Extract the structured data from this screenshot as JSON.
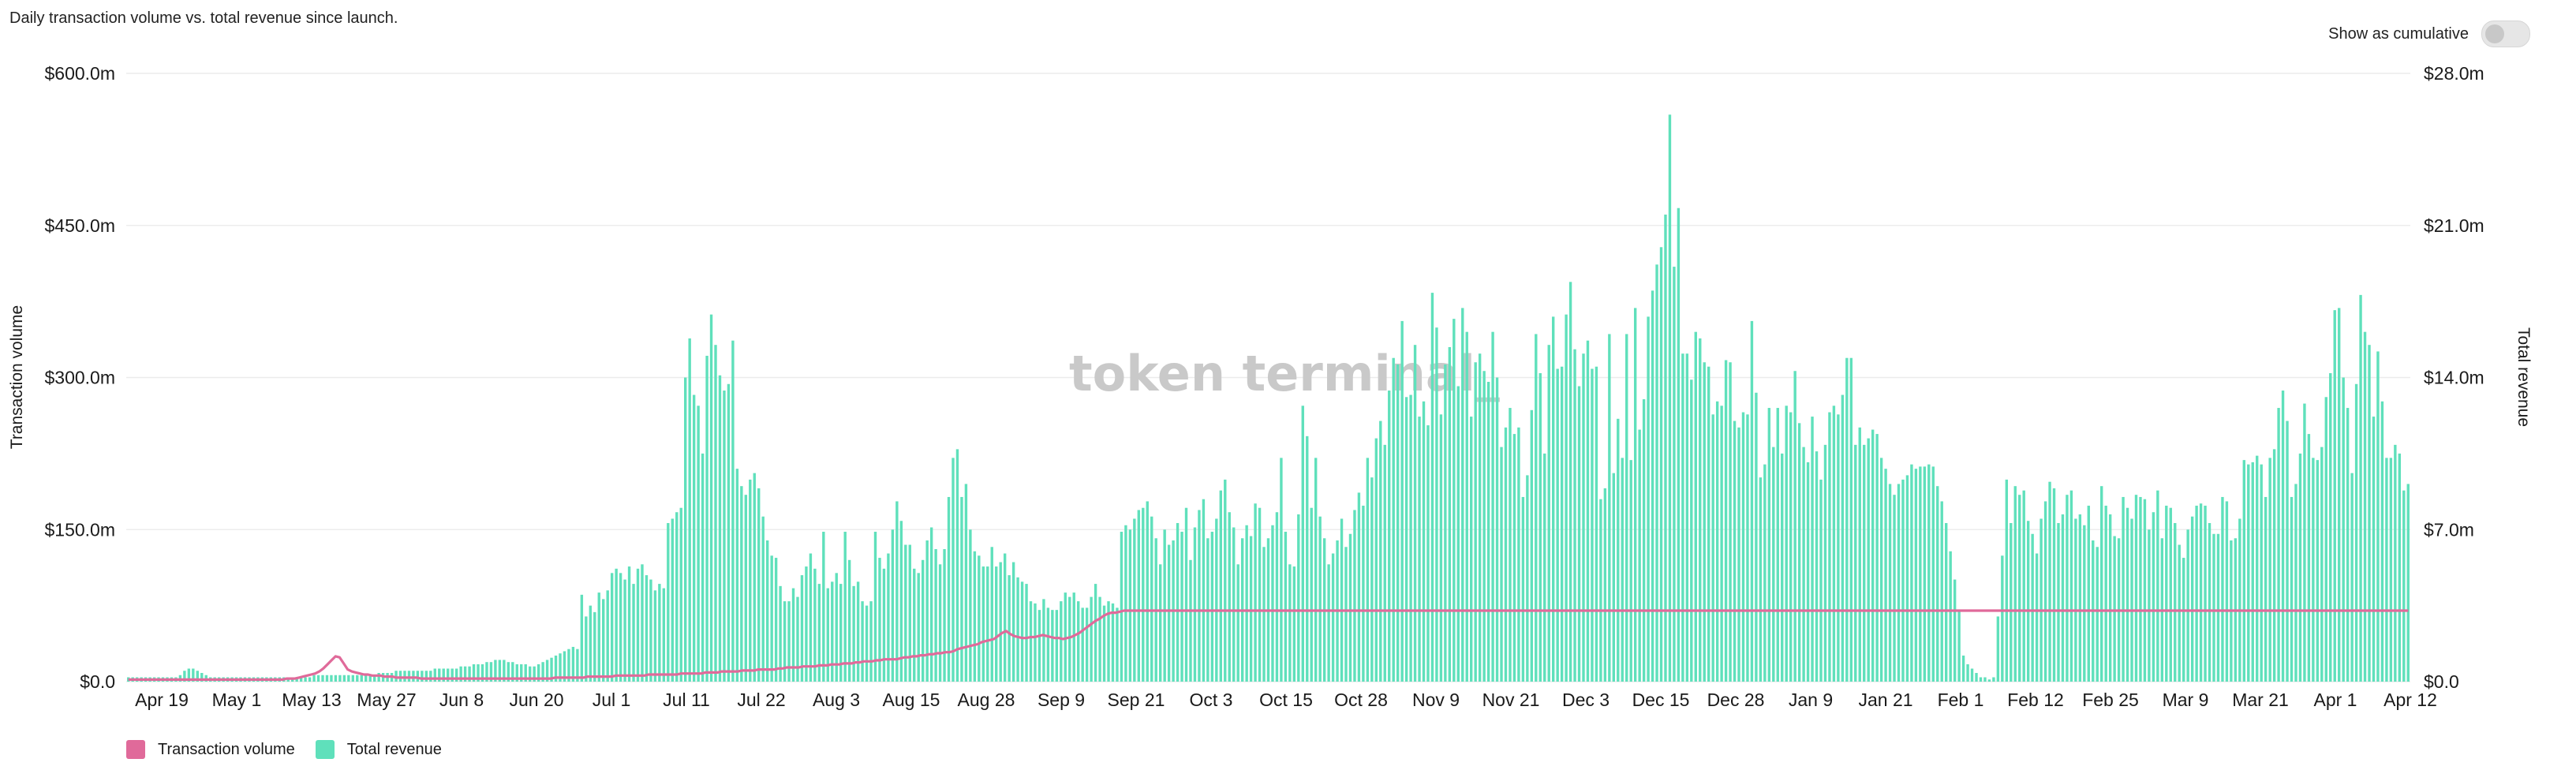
{
  "header": {
    "subtitle": "Daily transaction volume vs. total revenue since launch.",
    "toggle_label": "Show as cumulative"
  },
  "chart_data": {
    "type": "bar+line",
    "watermark": "token terminal_",
    "y_left": {
      "label": "Transaction volume",
      "range": [
        0,
        600
      ],
      "unit": "$m",
      "ticks": [
        "$0.0",
        "$150.0m",
        "$300.0m",
        "$450.0m",
        "$600.0m"
      ]
    },
    "y_right": {
      "label": "Total revenue",
      "range": [
        0,
        28
      ],
      "unit": "$m",
      "ticks": [
        "$0.0",
        "$7.0m",
        "$14.0m",
        "$21.0m",
        "$28.0m"
      ]
    },
    "x_ticks": [
      "Apr 19",
      "May 1",
      "May 13",
      "May 27",
      "Jun 8",
      "Jun 20",
      "Jul 1",
      "Jul 11",
      "Jul 22",
      "Aug 3",
      "Aug 15",
      "Aug 28",
      "Sep 9",
      "Sep 21",
      "Oct 3",
      "Oct 15",
      "Oct 28",
      "Nov 9",
      "Nov 21",
      "Dec 3",
      "Dec 15",
      "Dec 28",
      "Jan 9",
      "Jan 21",
      "Feb 1",
      "Feb 12",
      "Feb 25",
      "Mar 9",
      "Mar 21",
      "Apr 1",
      "Apr 12"
    ],
    "grid": true,
    "legend_position": "bottom-left",
    "colors": {
      "transaction_volume": "#e06a9a",
      "total_revenue": "#5fe0bb"
    },
    "series": [
      {
        "name": "Total revenue",
        "type": "bar",
        "axis": "right",
        "values": [
          0.2,
          0.2,
          0.2,
          0.2,
          0.2,
          0.2,
          0.2,
          0.2,
          0.2,
          0.2,
          0.2,
          0.2,
          0.3,
          0.5,
          0.6,
          0.6,
          0.5,
          0.4,
          0.3,
          0.2,
          0.2,
          0.2,
          0.2,
          0.2,
          0.2,
          0.2,
          0.2,
          0.2,
          0.2,
          0.2,
          0.2,
          0.2,
          0.2,
          0.2,
          0.2,
          0.2,
          0.2,
          0.2,
          0.2,
          0.2,
          0.2,
          0.2,
          0.2,
          0.3,
          0.3,
          0.3,
          0.3,
          0.3,
          0.3,
          0.3,
          0.3,
          0.3,
          0.3,
          0.3,
          0.3,
          0.3,
          0.3,
          0.3,
          0.4,
          0.4,
          0.4,
          0.4,
          0.5,
          0.5,
          0.5,
          0.5,
          0.5,
          0.5,
          0.5,
          0.5,
          0.5,
          0.6,
          0.6,
          0.6,
          0.6,
          0.6,
          0.6,
          0.7,
          0.7,
          0.7,
          0.8,
          0.8,
          0.8,
          0.9,
          0.9,
          1.0,
          1.0,
          1.0,
          0.9,
          0.9,
          0.8,
          0.8,
          0.8,
          0.7,
          0.7,
          0.8,
          0.9,
          1.0,
          1.1,
          1.2,
          1.3,
          1.4,
          1.5,
          1.6,
          1.5,
          4.0,
          3.0,
          3.5,
          3.2,
          4.1,
          3.8,
          4.2,
          5.0,
          5.2,
          5.0,
          4.7,
          5.3,
          4.5,
          5.2,
          5.4,
          4.9,
          4.7,
          4.2,
          4.5,
          4.3,
          7.3,
          7.5,
          7.8,
          8.0,
          14.0,
          15.8,
          13.2,
          12.7,
          10.5,
          15.0,
          16.9,
          15.5,
          14.1,
          13.4,
          13.7,
          15.7,
          9.8,
          9.0,
          8.6,
          9.3,
          9.6,
          8.9,
          7.6,
          6.5,
          5.8,
          5.7,
          4.4,
          3.7,
          3.7,
          4.3,
          3.9,
          4.9,
          5.3,
          5.9,
          5.2,
          4.5,
          6.9,
          4.3,
          4.6,
          5.0,
          4.5,
          6.9,
          5.6,
          4.4,
          4.6,
          3.7,
          3.5,
          3.7,
          6.9,
          5.7,
          5.2,
          5.9,
          7.0,
          8.3,
          7.4,
          6.3,
          6.3,
          5.2,
          5.0,
          5.6,
          6.5,
          7.1,
          6.1,
          5.4,
          6.1,
          8.5,
          10.3,
          10.7,
          8.5,
          9.1,
          7.0,
          6.0,
          5.8,
          5.3,
          5.3,
          6.2,
          5.3,
          5.5,
          5.9,
          4.9,
          5.5,
          4.8,
          4.6,
          4.5,
          3.7,
          3.6,
          3.3,
          3.8,
          3.4,
          3.3,
          3.3,
          3.7,
          4.1,
          3.9,
          4.1,
          3.7,
          3.4,
          3.4,
          3.9,
          4.5,
          3.9,
          3.5,
          3.7,
          3.6,
          3.4,
          6.9,
          7.2,
          7.0,
          7.5,
          7.9,
          8.0,
          8.3,
          7.6,
          6.6,
          5.4,
          7.0,
          6.3,
          6.5,
          7.3,
          6.9,
          8.0,
          5.6,
          7.1,
          7.9,
          8.4,
          6.6,
          6.9,
          7.5,
          8.8,
          9.3,
          7.8,
          7.1,
          5.4,
          6.6,
          7.2,
          6.7,
          8.2,
          8.0,
          6.2,
          6.6,
          7.2,
          7.8,
          10.3,
          6.9,
          5.4,
          5.3,
          7.7,
          12.7,
          11.3,
          8.0,
          10.3,
          7.6,
          6.6,
          5.4,
          5.9,
          6.5,
          7.5,
          6.2,
          6.8,
          7.9,
          8.7,
          8.1,
          10.3,
          9.4,
          11.2,
          12.0,
          10.9,
          13.4,
          14.9,
          14.6,
          16.6,
          13.1,
          13.2,
          15.5,
          12.2,
          12.9,
          11.8,
          17.9,
          16.3,
          12.3,
          14.6,
          15.4,
          16.7,
          13.6,
          17.2,
          16.1,
          12.2,
          14.7,
          15.1,
          14.3,
          13.8,
          16.1,
          14.0,
          10.8,
          11.7,
          12.6,
          11.4,
          11.7,
          8.5,
          9.5,
          12.5,
          16.0,
          14.2,
          10.5,
          15.5,
          16.8,
          14.4,
          14.5,
          16.9,
          18.4,
          15.3,
          13.6,
          15.1,
          15.7,
          14.4,
          14.5,
          8.4,
          8.9,
          16.0,
          9.6,
          12.1,
          10.3,
          16.0,
          10.2,
          17.2,
          11.6,
          13.0,
          16.8,
          18.0,
          19.2,
          20.0,
          21.5,
          26.1,
          19.1,
          21.8,
          15.1,
          15.1,
          13.9,
          16.1,
          15.8,
          14.7,
          14.5,
          12.3,
          12.9,
          12.7,
          14.8,
          14.7,
          12.0,
          11.7,
          12.4,
          12.3,
          16.6,
          13.3,
          9.4,
          10.0,
          12.6,
          10.8,
          12.6,
          10.5,
          12.7,
          12.4,
          14.3,
          11.9,
          10.8,
          10.1,
          12.2,
          10.6,
          9.3,
          10.9,
          12.4,
          12.7,
          12.3,
          13.2,
          14.9,
          14.9,
          10.9,
          11.7,
          10.9,
          11.2,
          11.6,
          11.4,
          10.3,
          9.8,
          9.1,
          8.6,
          9.1,
          9.3,
          9.5,
          10.0,
          9.8,
          9.9,
          9.9,
          10.0,
          9.9,
          9.0,
          8.3,
          7.3,
          6.0,
          4.7,
          3.3,
          1.2,
          0.8,
          0.6,
          0.4,
          0.2,
          0.2,
          0.1,
          0.2,
          3.0,
          5.8,
          9.3,
          7.3,
          9.0,
          8.6,
          8.8,
          7.4,
          6.8,
          5.9,
          7.5,
          8.3,
          9.2,
          8.9,
          7.3,
          7.7,
          8.6,
          8.8,
          7.5,
          7.7,
          7.2,
          8.1,
          6.5,
          6.2,
          9.0,
          8.1,
          7.7,
          6.7,
          6.6,
          8.5,
          8.0,
          7.5,
          8.6,
          8.5,
          8.4,
          7.0,
          7.8,
          8.8,
          6.6,
          8.1,
          8.0,
          7.3,
          6.3,
          5.7,
          7.0,
          7.6,
          8.1,
          8.2,
          8.1,
          7.3,
          6.8,
          6.8,
          8.5,
          8.3,
          6.5,
          6.6,
          7.5,
          10.2,
          10.0,
          10.1,
          10.4,
          10.0,
          8.5,
          10.3,
          10.7,
          12.6,
          13.4,
          12.0,
          8.5,
          9.1,
          10.5,
          12.8,
          11.4,
          10.3,
          10.2,
          10.8,
          13.1,
          14.2,
          17.1,
          17.2,
          14.0,
          12.6,
          9.6,
          13.7,
          17.8,
          16.1,
          15.5,
          12.2,
          15.2,
          12.9,
          10.3,
          10.3,
          10.9,
          10.5,
          8.8,
          9.1
        ]
      },
      {
        "name": "Transaction volume",
        "type": "line",
        "axis": "left",
        "values": [
          2,
          2,
          2,
          2,
          2,
          2,
          2,
          2,
          2,
          2,
          2,
          2,
          2,
          2,
          2,
          2,
          2,
          2,
          2,
          2,
          2,
          2,
          2,
          2,
          2,
          2,
          2,
          2,
          2,
          2,
          2,
          2,
          2,
          2,
          2,
          2,
          2,
          2,
          2,
          3,
          3,
          3,
          4,
          5,
          6,
          7,
          8,
          10,
          13,
          17,
          21,
          25,
          24,
          18,
          12,
          10,
          9,
          8,
          7,
          7,
          6,
          6,
          6,
          5,
          5,
          5,
          4,
          4,
          4,
          4,
          4,
          4,
          3,
          3,
          3,
          3,
          3,
          3,
          3,
          3,
          3,
          3,
          3,
          3,
          3,
          3,
          3,
          3,
          3,
          3,
          3,
          3,
          3,
          3,
          3,
          3,
          3,
          3,
          3,
          3,
          3,
          3,
          3,
          3,
          3,
          4,
          4,
          4,
          4,
          4,
          4,
          4,
          4,
          5,
          5,
          5,
          5,
          5,
          5,
          5,
          6,
          6,
          6,
          6,
          6,
          6,
          6,
          6,
          7,
          7,
          7,
          7,
          7,
          7,
          7,
          7,
          8,
          8,
          8,
          8,
          8,
          8,
          9,
          9,
          9,
          9,
          10,
          10,
          10,
          10,
          10,
          11,
          11,
          11,
          11,
          12,
          12,
          12,
          12,
          12,
          13,
          13,
          14,
          14,
          14,
          14,
          15,
          15,
          15,
          15,
          16,
          16,
          16,
          17,
          17,
          17,
          18,
          18,
          18,
          19,
          19,
          20,
          20,
          20,
          21,
          21,
          22,
          22,
          22,
          22,
          23,
          24,
          24,
          25,
          25,
          26,
          26,
          27,
          27,
          28,
          28,
          29,
          29,
          30,
          32,
          33,
          34,
          35,
          36,
          37,
          39,
          40,
          41,
          42,
          45,
          48,
          50,
          47,
          45,
          44,
          43,
          43,
          44,
          44,
          45,
          46,
          45,
          44,
          43,
          43,
          42,
          43,
          44,
          46,
          48,
          51,
          54,
          57,
          60,
          62,
          65,
          67,
          68,
          68,
          69,
          70,
          70,
          70,
          70,
          70,
          70,
          70,
          70,
          70,
          70,
          70,
          70,
          70,
          70,
          70,
          70,
          70,
          70,
          70,
          70,
          70,
          70,
          70,
          70,
          70,
          70,
          70,
          70,
          70,
          70,
          70,
          70,
          70,
          70,
          70,
          70,
          70,
          70,
          70,
          70,
          70,
          70,
          70,
          70,
          70,
          70,
          70,
          70,
          70,
          70,
          70,
          70,
          70,
          70,
          70,
          70,
          70,
          70,
          70,
          70,
          70,
          70,
          70,
          70,
          70,
          70,
          70,
          70,
          70,
          70,
          70,
          70,
          70,
          70,
          70,
          70,
          70,
          70,
          70,
          70,
          70,
          70,
          70,
          70,
          70,
          70,
          70,
          70,
          70,
          70,
          70,
          70,
          70,
          70,
          70,
          70,
          70,
          70,
          70,
          70,
          70,
          70,
          70,
          70,
          70,
          70,
          70,
          70,
          70,
          70,
          70,
          70,
          70,
          70,
          70,
          70,
          70,
          70,
          70,
          70,
          70,
          70,
          70,
          70,
          70,
          70,
          70,
          70,
          70,
          70,
          70,
          70,
          70,
          70,
          70,
          70,
          70,
          70,
          70,
          70,
          70,
          70,
          70,
          70,
          70,
          70,
          70,
          70,
          70,
          70,
          70,
          70,
          70,
          70,
          70,
          70,
          70,
          70,
          70,
          70,
          70,
          70,
          70,
          70,
          70,
          70,
          70,
          70,
          70,
          70,
          70,
          70,
          70,
          70,
          70,
          70,
          70,
          70,
          70,
          70,
          70,
          70,
          70,
          70,
          70,
          70,
          70,
          70,
          70,
          70,
          70,
          70,
          70,
          70,
          70,
          70,
          70,
          70,
          70,
          70,
          70,
          70,
          70,
          70,
          70,
          70,
          70,
          70,
          70,
          70,
          70,
          70,
          70,
          70,
          70,
          70,
          70,
          70,
          70,
          70,
          70,
          70,
          70,
          70,
          70,
          70,
          70,
          70,
          70,
          70,
          70,
          70,
          70,
          70,
          70,
          70,
          70,
          70,
          70,
          70,
          70,
          70,
          70,
          70,
          70,
          70,
          70,
          70,
          70,
          70,
          70,
          70,
          70,
          70,
          70,
          70,
          70,
          70,
          70,
          70,
          70,
          70,
          70,
          70,
          70,
          70,
          70,
          70,
          70,
          70,
          70,
          70,
          70,
          70,
          70,
          70,
          70,
          70,
          70,
          70,
          70,
          70,
          70,
          70,
          70,
          70,
          70,
          70,
          70,
          70,
          70,
          70,
          70,
          70,
          70,
          70,
          70,
          70,
          70,
          70,
          70,
          70,
          70,
          70,
          70,
          70,
          70,
          70,
          70,
          70,
          70,
          70,
          70,
          70,
          70,
          70,
          70
        ]
      }
    ]
  }
}
